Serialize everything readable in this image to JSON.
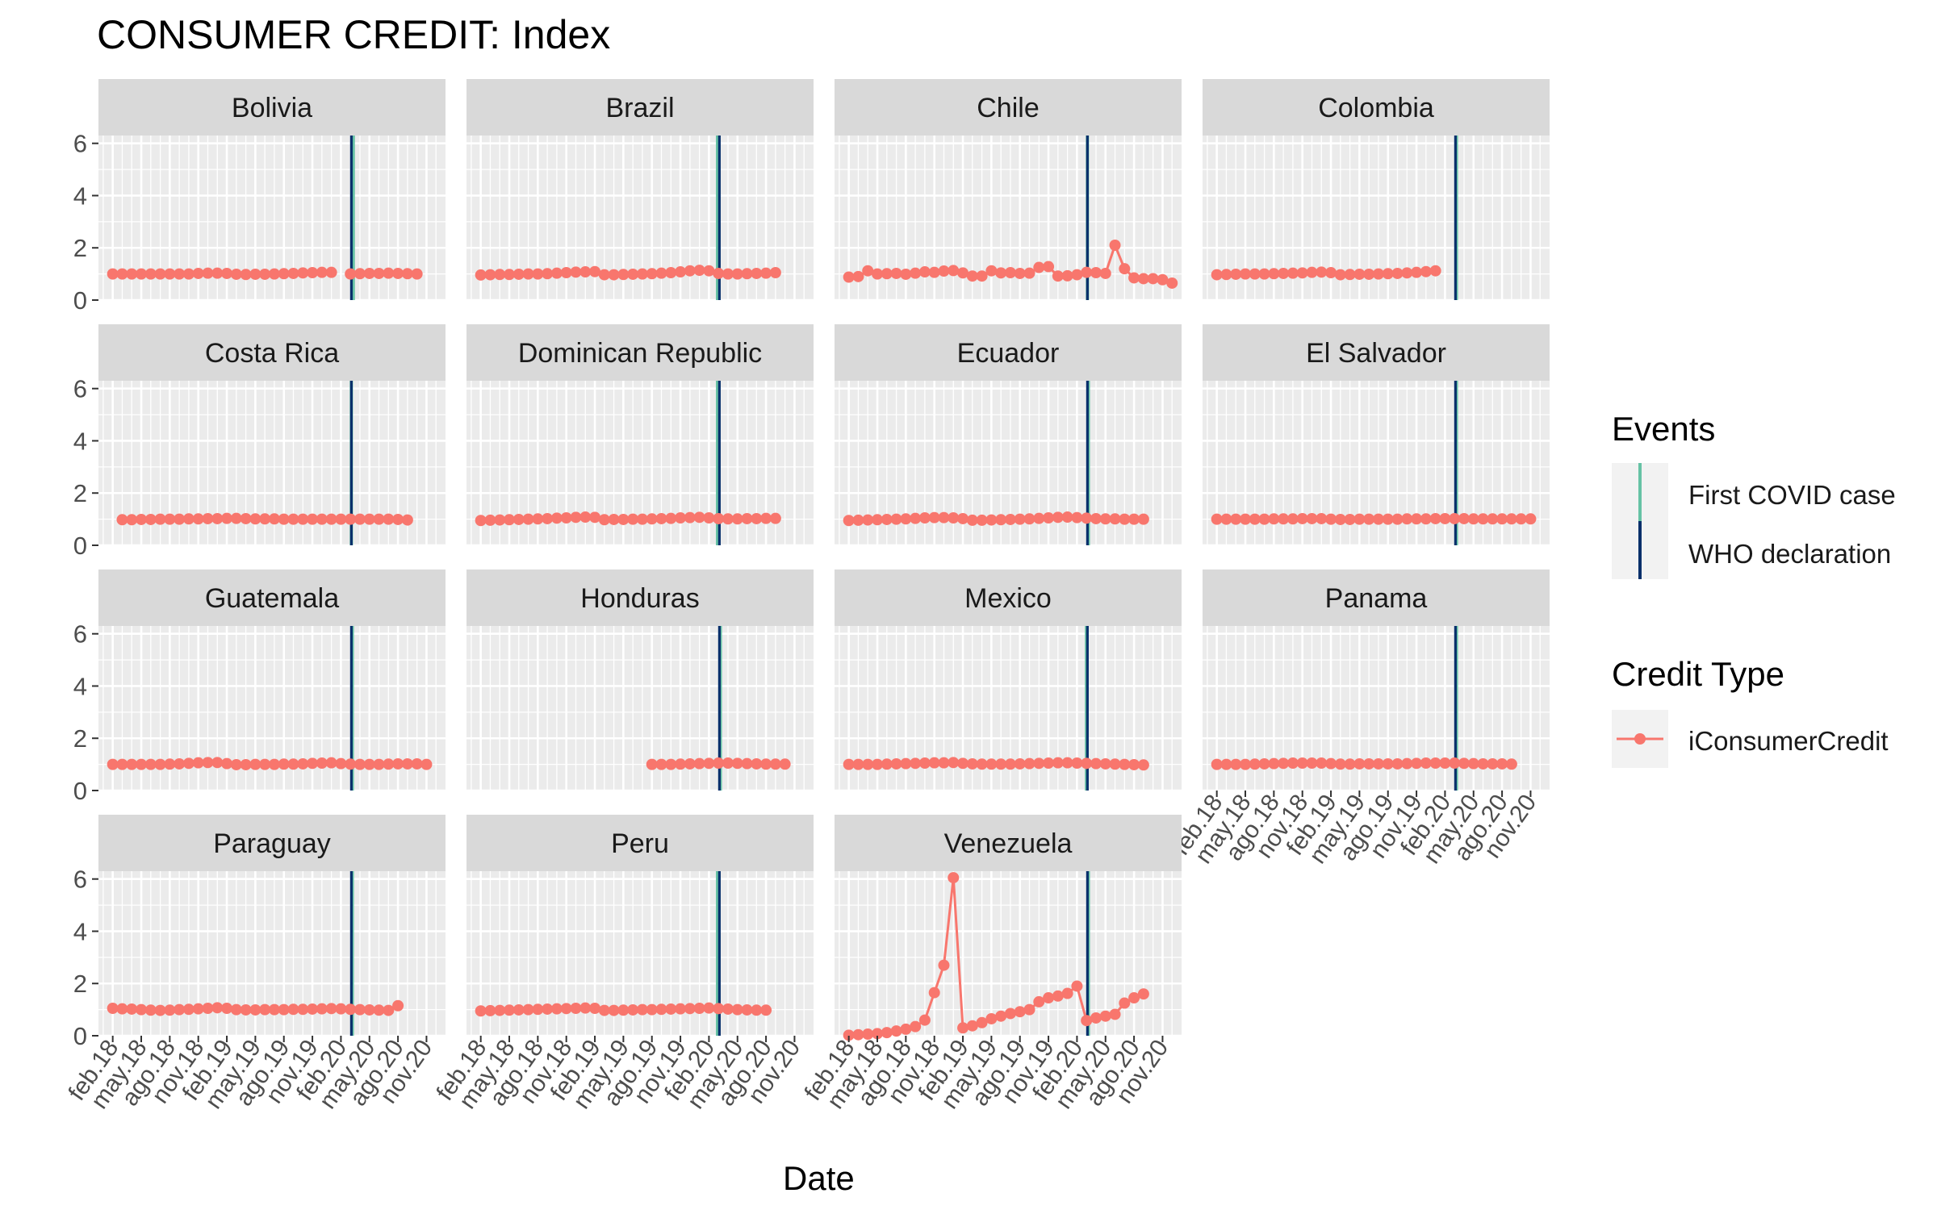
{
  "chart_data": {
    "type": "line",
    "title": "CONSUMER CREDIT: Index",
    "xlabel": "Date",
    "ylabel": "",
    "ylim": [
      0,
      6.3
    ],
    "y_ticks": [
      0,
      2,
      4,
      6
    ],
    "x_ticks": [
      "feb.18",
      "may.18",
      "ago.18",
      "nov.18",
      "feb.19",
      "may.19",
      "ago.19",
      "nov.19",
      "feb.20",
      "may.20",
      "ago.20",
      "nov.20"
    ],
    "x_tick_month_index": [
      1,
      4,
      7,
      10,
      13,
      16,
      19,
      22,
      25,
      28,
      31,
      34
    ],
    "x_month_range": [
      -0.5,
      36
    ],
    "grid": true,
    "legends": {
      "events_title": "Events",
      "events": [
        {
          "label": "First COVID case",
          "color": "#66c2a5"
        },
        {
          "label": "WHO declaration",
          "color": "#08306b"
        }
      ],
      "credit_title": "Credit Type",
      "credit": [
        {
          "label": "iConsumerCredit",
          "color": "#f8766d"
        }
      ]
    },
    "panels": [
      {
        "name": "Bolivia",
        "first_covid": 26.3,
        "who": 26.1,
        "start": 1,
        "values": [
          1.0,
          1.0,
          1.0,
          1.0,
          1.0,
          1.0,
          1.0,
          1.0,
          1.0,
          1.02,
          1.03,
          1.03,
          1.02,
          0.99,
          0.98,
          0.99,
          0.99,
          1.0,
          1.01,
          1.02,
          1.04,
          1.05,
          1.06,
          1.06,
          null,
          1.0,
          1.01,
          1.02,
          1.02,
          1.03,
          1.02,
          1.01,
          1.0
        ]
      },
      {
        "name": "Brazil",
        "first_covid": 25.9,
        "who": 26.1,
        "start": 1,
        "values": [
          0.96,
          0.97,
          0.98,
          0.98,
          0.99,
          1.0,
          1.0,
          1.01,
          1.03,
          1.05,
          1.07,
          1.08,
          1.09,
          0.97,
          0.97,
          0.98,
          0.99,
          1.0,
          1.01,
          1.03,
          1.05,
          1.08,
          1.12,
          1.14,
          1.12,
          1.02,
          1.0,
          1.0,
          1.01,
          1.02,
          1.03,
          1.05
        ]
      },
      {
        "name": "Chile",
        "first_covid": 26.1,
        "who": 26.1,
        "start": 1,
        "values": [
          0.88,
          0.9,
          1.12,
          1.0,
          1.01,
          1.02,
          0.99,
          1.03,
          1.08,
          1.06,
          1.11,
          1.13,
          1.04,
          0.92,
          0.92,
          1.12,
          1.04,
          1.05,
          1.02,
          1.03,
          1.25,
          1.28,
          0.92,
          0.93,
          0.97,
          1.06,
          1.05,
          1.02,
          2.1,
          1.2,
          0.85,
          0.82,
          0.82,
          0.78,
          0.65
        ]
      },
      {
        "name": "Colombia",
        "first_covid": 26.2,
        "who": 26.1,
        "start": 1,
        "values": [
          0.97,
          0.98,
          0.99,
          1.0,
          1.0,
          1.0,
          1.01,
          1.02,
          1.03,
          1.04,
          1.06,
          1.07,
          1.05,
          0.97,
          0.98,
          0.99,
          0.99,
          1.0,
          1.01,
          1.02,
          1.04,
          1.06,
          1.09,
          1.12
        ]
      },
      {
        "name": "Costa Rica",
        "first_covid": 26.1,
        "who": 26.1,
        "start": 2,
        "values": [
          0.98,
          0.98,
          0.99,
          0.99,
          1.0,
          1.0,
          1.0,
          1.01,
          1.01,
          1.02,
          1.02,
          1.03,
          1.03,
          1.02,
          1.01,
          1.01,
          1.01,
          1.0,
          1.0,
          1.0,
          1.0,
          1.0,
          1.0,
          1.0,
          1.0,
          1.0,
          1.0,
          1.0,
          1.0,
          0.99,
          0.97
        ]
      },
      {
        "name": "Dominican Republic",
        "first_covid": 25.9,
        "who": 26.1,
        "start": 1,
        "values": [
          0.95,
          0.96,
          0.97,
          0.98,
          0.99,
          1.0,
          1.01,
          1.02,
          1.04,
          1.05,
          1.07,
          1.08,
          1.07,
          0.98,
          0.99,
          0.99,
          1.0,
          1.0,
          1.01,
          1.02,
          1.03,
          1.05,
          1.06,
          1.07,
          1.05,
          1.02,
          1.01,
          1.01,
          1.02,
          1.02,
          1.03,
          1.03
        ]
      },
      {
        "name": "Ecuador",
        "first_covid": 26.2,
        "who": 26.1,
        "start": 1,
        "values": [
          0.95,
          0.96,
          0.97,
          0.98,
          0.99,
          1.0,
          1.01,
          1.03,
          1.05,
          1.06,
          1.06,
          1.05,
          1.02,
          0.96,
          0.96,
          0.97,
          0.98,
          0.99,
          1.0,
          1.01,
          1.03,
          1.05,
          1.07,
          1.08,
          1.06,
          1.04,
          1.02,
          1.01,
          1.01,
          1.0,
          1.0,
          1.0
        ]
      },
      {
        "name": "El Salvador",
        "first_covid": 26.2,
        "who": 26.1,
        "start": 1,
        "values": [
          1.0,
          1.0,
          1.0,
          1.0,
          1.0,
          1.0,
          1.01,
          1.01,
          1.01,
          1.02,
          1.02,
          1.02,
          1.0,
          0.99,
          0.99,
          1.0,
          1.0,
          1.0,
          1.0,
          1.0,
          1.01,
          1.01,
          1.01,
          1.02,
          1.02,
          1.02,
          1.02,
          1.01,
          1.01,
          1.01,
          1.01,
          1.01,
          1.01,
          1.01
        ]
      },
      {
        "name": "Guatemala",
        "first_covid": 26.2,
        "who": 26.1,
        "start": 1,
        "values": [
          1.0,
          1.0,
          1.0,
          1.0,
          1.0,
          1.0,
          1.01,
          1.02,
          1.04,
          1.06,
          1.07,
          1.07,
          1.03,
          0.99,
          0.99,
          1.0,
          1.0,
          1.0,
          1.01,
          1.01,
          1.02,
          1.04,
          1.05,
          1.06,
          1.03,
          1.01,
          1.0,
          1.0,
          1.0,
          1.01,
          1.02,
          1.02,
          1.02,
          1.0
        ]
      },
      {
        "name": "Honduras",
        "first_covid": 26.2,
        "who": 26.1,
        "start": 19,
        "values": [
          1.0,
          1.0,
          1.0,
          1.01,
          1.02,
          1.03,
          1.04,
          1.05,
          1.05,
          1.04,
          1.03,
          1.02,
          1.01,
          1.01,
          1.01
        ]
      },
      {
        "name": "Mexico",
        "first_covid": 26.0,
        "who": 26.1,
        "start": 1,
        "values": [
          1.0,
          1.0,
          1.0,
          1.0,
          1.01,
          1.02,
          1.03,
          1.04,
          1.05,
          1.06,
          1.06,
          1.07,
          1.04,
          1.02,
          1.01,
          1.01,
          1.01,
          1.01,
          1.02,
          1.03,
          1.04,
          1.05,
          1.06,
          1.06,
          1.05,
          1.04,
          1.03,
          1.02,
          1.01,
          1.0,
          0.99,
          0.98
        ]
      },
      {
        "name": "Panama",
        "first_covid": 26.2,
        "who": 26.1,
        "start": 1,
        "values": [
          1.0,
          1.0,
          1.0,
          1.0,
          1.01,
          1.02,
          1.03,
          1.04,
          1.05,
          1.05,
          1.05,
          1.05,
          1.03,
          1.01,
          1.01,
          1.02,
          1.02,
          1.02,
          1.02,
          1.02,
          1.03,
          1.04,
          1.05,
          1.05,
          1.05,
          1.05,
          1.04,
          1.03,
          1.02,
          1.02,
          1.02,
          1.01
        ]
      },
      {
        "name": "Paraguay",
        "first_covid": 26.2,
        "who": 26.1,
        "start": 1,
        "values": [
          1.05,
          1.03,
          1.02,
          1.0,
          0.98,
          0.97,
          0.98,
          1.0,
          1.01,
          1.03,
          1.05,
          1.07,
          1.05,
          1.0,
          0.99,
          0.99,
          1.0,
          1.0,
          1.0,
          1.01,
          1.01,
          1.02,
          1.03,
          1.04,
          1.03,
          1.01,
          1.0,
          0.99,
          0.98,
          0.97,
          1.15
        ]
      },
      {
        "name": "Peru",
        "first_covid": 25.9,
        "who": 26.1,
        "start": 1,
        "values": [
          0.95,
          0.96,
          0.97,
          0.98,
          0.99,
          1.0,
          1.01,
          1.02,
          1.03,
          1.04,
          1.05,
          1.06,
          1.05,
          0.97,
          0.97,
          0.98,
          0.99,
          1.0,
          1.0,
          1.01,
          1.02,
          1.03,
          1.04,
          1.05,
          1.06,
          1.04,
          1.02,
          1.0,
          0.99,
          0.98,
          0.98
        ]
      },
      {
        "name": "Venezuela",
        "first_covid": 26.2,
        "who": 26.1,
        "start": 1,
        "values": [
          0.02,
          0.04,
          0.06,
          0.08,
          0.12,
          0.18,
          0.25,
          0.35,
          0.6,
          1.65,
          2.7,
          6.05,
          0.3,
          0.38,
          0.5,
          0.65,
          0.75,
          0.85,
          0.92,
          1.0,
          1.3,
          1.45,
          1.52,
          1.62,
          1.9,
          0.58,
          0.68,
          0.75,
          0.82,
          1.25,
          1.45,
          1.6
        ]
      }
    ]
  }
}
